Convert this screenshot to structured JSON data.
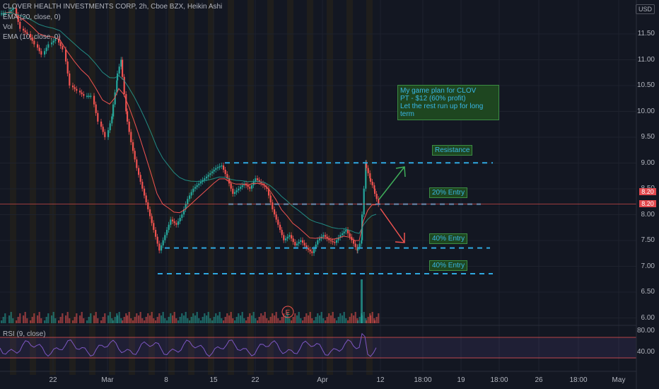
{
  "header": {
    "symbol_line": "CLOVER HEALTH INVESTMENTS CORP, 2h, Cboe BZX, Heikin Ashi",
    "ema20": "EMA (20, close, 0)",
    "vol": "Vol",
    "ema10": "EMA (10, close, 0)"
  },
  "currency": "USD",
  "y_axis": [
    "11.50",
    "11.00",
    "10.50",
    "10.00",
    "9.50",
    "9.00",
    "8.50",
    "8.00",
    "7.50",
    "7.00",
    "6.50",
    "6.00"
  ],
  "price_tags": [
    "8.20",
    "8.20"
  ],
  "rsi": {
    "label": "RSI (9, close)",
    "ticks": [
      "80.00",
      "40.00"
    ]
  },
  "x_axis": [
    "22",
    "Mar",
    "8",
    "15",
    "22",
    "Apr",
    "12",
    "18:00",
    "19",
    "18:00",
    "26",
    "18:00",
    "May"
  ],
  "annotations": {
    "note": [
      "My game plan for CLOV",
      "PT - $12 (60% profit)",
      "Let the rest run up for long term"
    ],
    "resistance": "Resistance",
    "entry_20": "20% Entry",
    "entry_40a": "40% Entry",
    "entry_40b": "40% Entry",
    "earnings_marker": "E"
  },
  "colors": {
    "background": "#131722",
    "up": "#26a69a",
    "down": "#ef5350",
    "ema": "#ef5350",
    "rsi": "#7e57c2",
    "level": "#2fa8e0"
  },
  "chart_data": {
    "type": "candlestick",
    "series_note_free": true,
    "x": [
      "Feb 17",
      "Feb 22",
      "Mar 1",
      "Mar 8",
      "Mar 15",
      "Mar 22",
      "Apr 1",
      "Apr 12"
    ],
    "close": [
      11.9,
      11.2,
      9.8,
      7.3,
      8.9,
      8.5,
      7.45,
      8.2
    ],
    "levels": {
      "resistance": 9.0,
      "entry_20": 8.2,
      "entry_40a": 7.35,
      "entry_40b": 6.85
    },
    "ylim": [
      6.0,
      12.2
    ]
  }
}
